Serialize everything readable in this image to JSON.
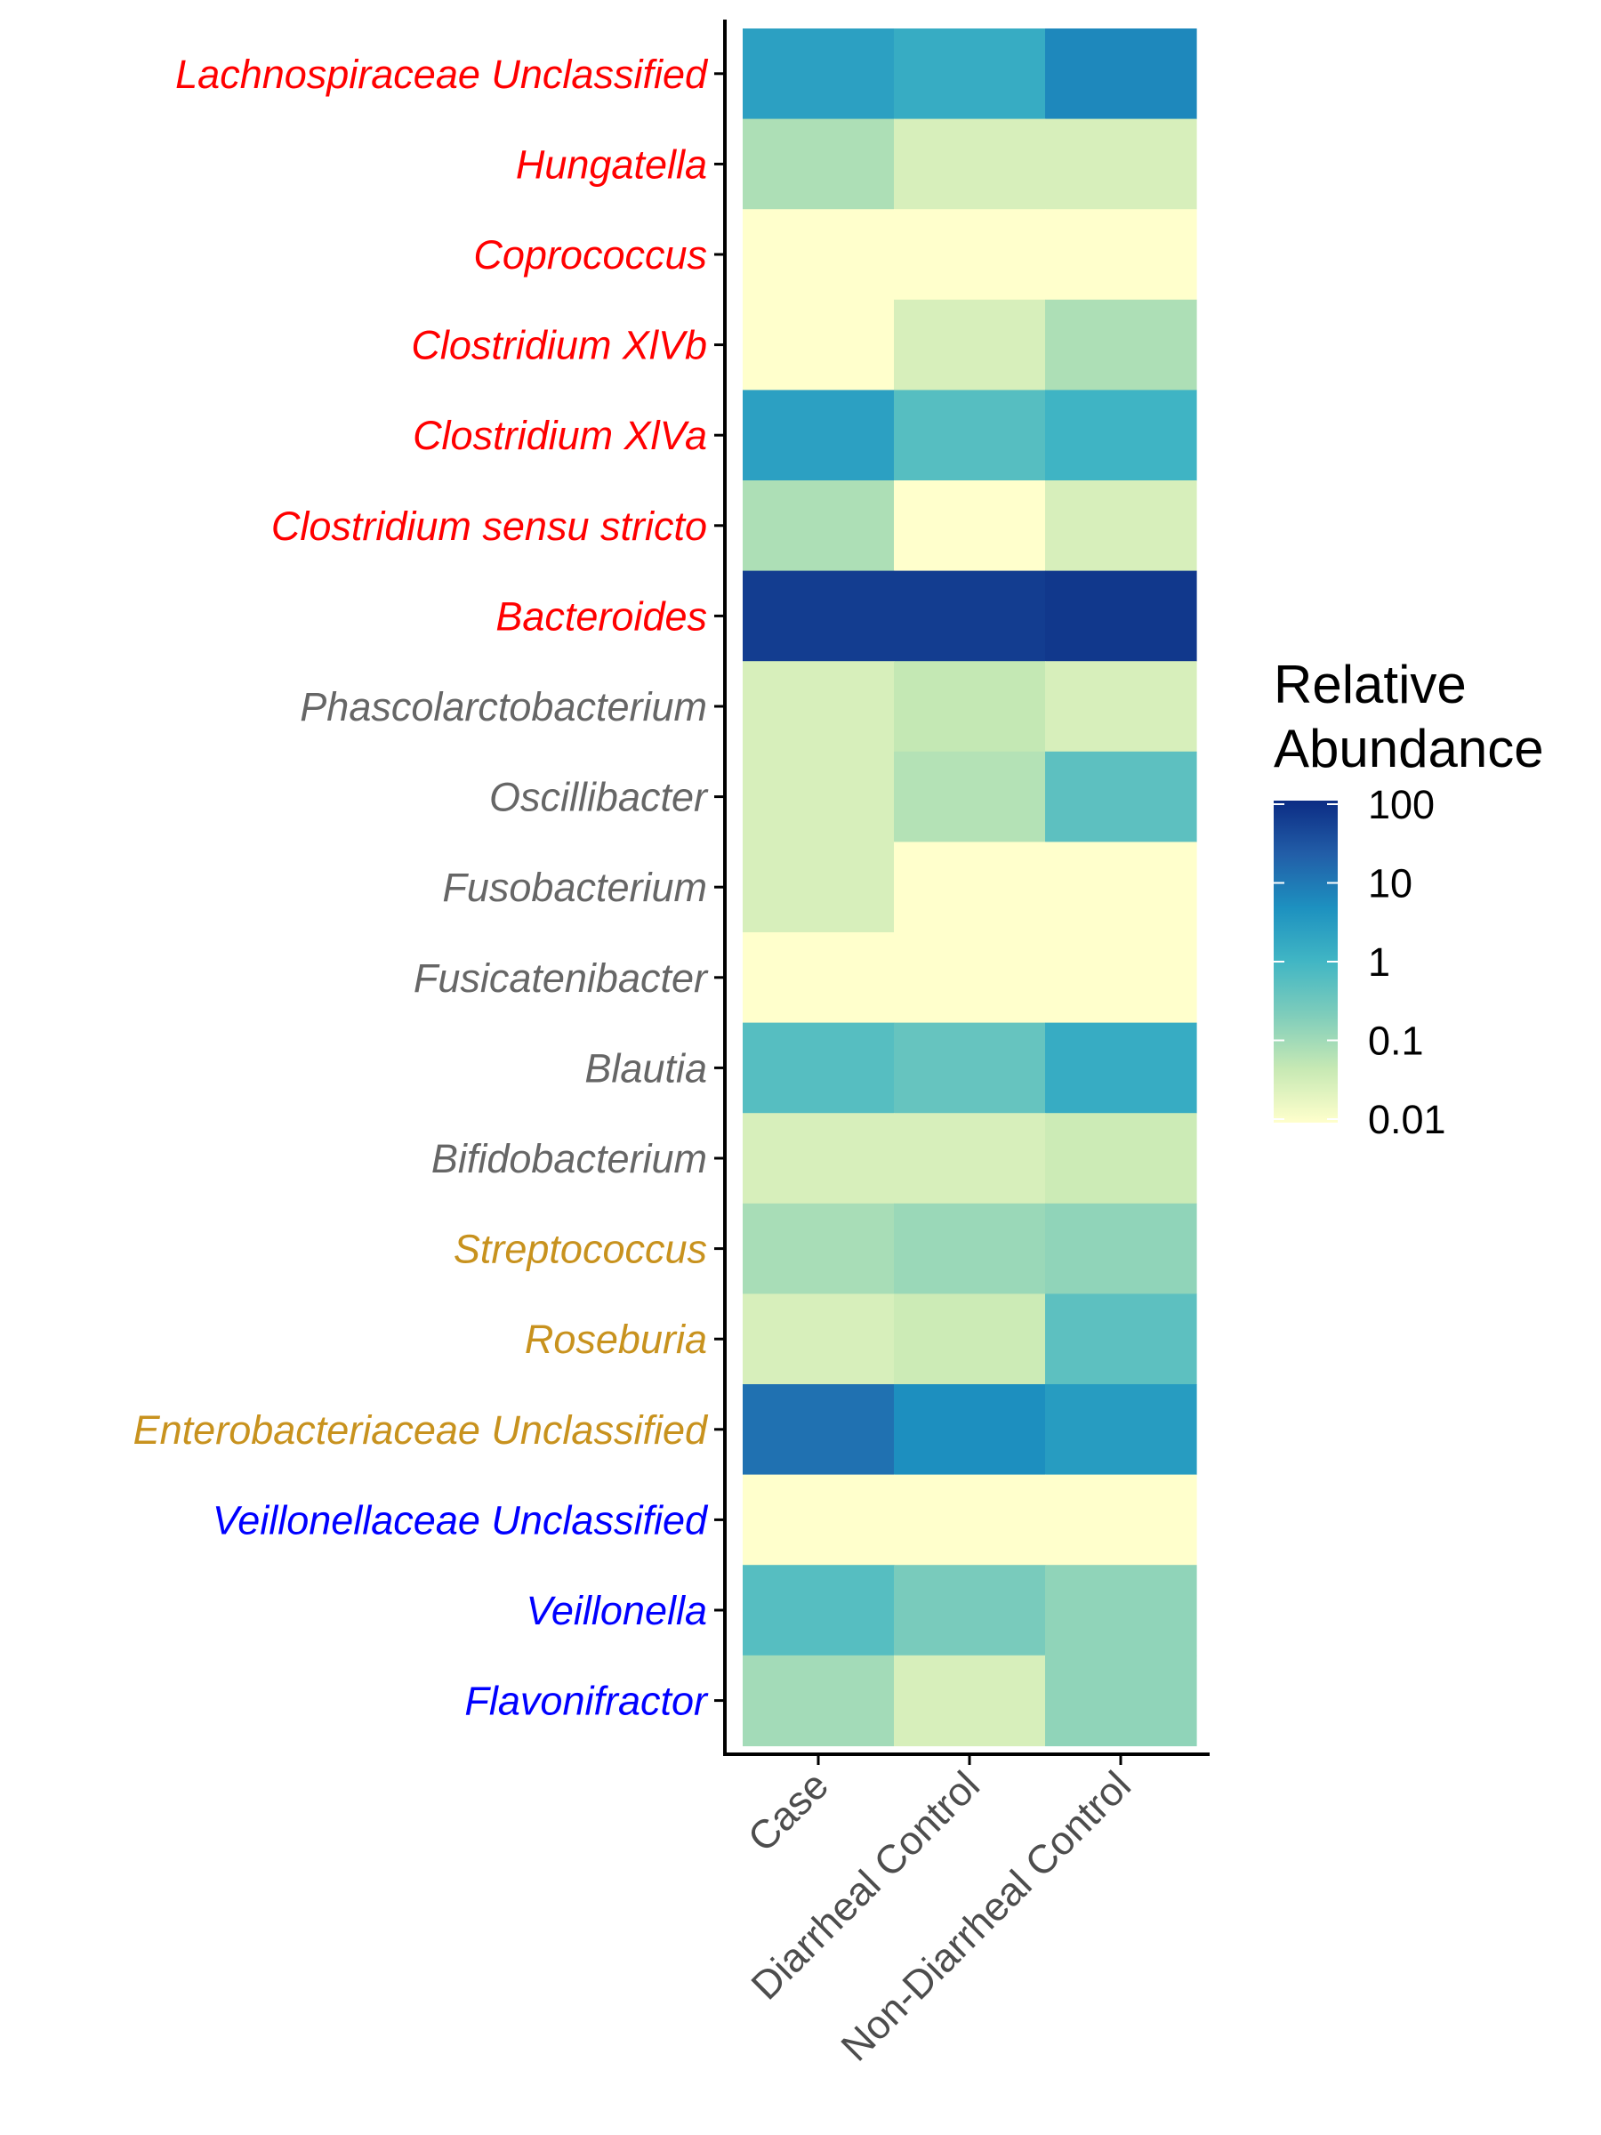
{
  "chart_data": {
    "type": "heatmap",
    "columns": [
      "Case",
      "Diarrheal Control",
      "Non-Diarrheal Control"
    ],
    "rows": [
      {
        "label": "Lachnospiraceae Unclassified",
        "group_color": "#ff0000",
        "values": [
          2.5,
          1.5,
          6
        ]
      },
      {
        "label": "Hungatella",
        "group_color": "#ff0000",
        "values": [
          0.08,
          0.03,
          0.03
        ]
      },
      {
        "label": "Coprococcus",
        "group_color": "#ff0000",
        "values": [
          0.01,
          0.01,
          0.01
        ]
      },
      {
        "label": "Clostridium XlVb",
        "group_color": "#ff0000",
        "values": [
          0.01,
          0.03,
          0.08
        ]
      },
      {
        "label": "Clostridium XlVa",
        "group_color": "#ff0000",
        "values": [
          2.5,
          0.6,
          1.1
        ]
      },
      {
        "label": "Clostridium sensu stricto",
        "group_color": "#ff0000",
        "values": [
          0.08,
          0.01,
          0.03
        ]
      },
      {
        "label": "Bacteroides",
        "group_color": "#ff0000",
        "values": [
          60,
          60,
          70
        ]
      },
      {
        "label": "Phascolarctobacterium",
        "group_color": "#666666",
        "values": [
          0.03,
          0.05,
          0.03
        ]
      },
      {
        "label": "Oscillibacter",
        "group_color": "#666666",
        "values": [
          0.03,
          0.07,
          0.5
        ]
      },
      {
        "label": "Fusobacterium",
        "group_color": "#666666",
        "values": [
          0.03,
          0.01,
          0.01
        ]
      },
      {
        "label": "Fusicatenibacter",
        "group_color": "#666666",
        "values": [
          0.01,
          0.01,
          0.01
        ]
      },
      {
        "label": "Blautia",
        "group_color": "#666666",
        "values": [
          0.6,
          0.4,
          1.5
        ]
      },
      {
        "label": "Bifidobacterium",
        "group_color": "#666666",
        "values": [
          0.03,
          0.03,
          0.04
        ]
      },
      {
        "label": "Streptococcus",
        "group_color": "#c8921e",
        "values": [
          0.09,
          0.12,
          0.15
        ]
      },
      {
        "label": "Roseburia",
        "group_color": "#c8921e",
        "values": [
          0.03,
          0.04,
          0.5
        ]
      },
      {
        "label": "Enterobacteriaceae Unclassified",
        "group_color": "#c8921e",
        "values": [
          12,
          5,
          3
        ]
      },
      {
        "label": "Veillonellaceae Unclassified",
        "group_color": "#0000ff",
        "values": [
          0.01,
          0.01,
          0.01
        ]
      },
      {
        "label": "Veillonella",
        "group_color": "#0000ff",
        "values": [
          0.6,
          0.25,
          0.15
        ]
      },
      {
        "label": "Flavonifractor",
        "group_color": "#0000ff",
        "values": [
          0.1,
          0.03,
          0.15
        ]
      }
    ],
    "color_scale": {
      "scale": "log10",
      "range": [
        0.01,
        100
      ],
      "palette": [
        "#ffffcc",
        "#c7e9b4",
        "#7fcdbb",
        "#41b6c4",
        "#1d91c0",
        "#225ea8",
        "#0c2c84"
      ]
    },
    "legend": {
      "title_lines": [
        "Relative",
        "Abundance"
      ],
      "ticks": [
        "100",
        "10",
        "1",
        "0.1",
        "0.01"
      ],
      "placement": "right"
    }
  }
}
